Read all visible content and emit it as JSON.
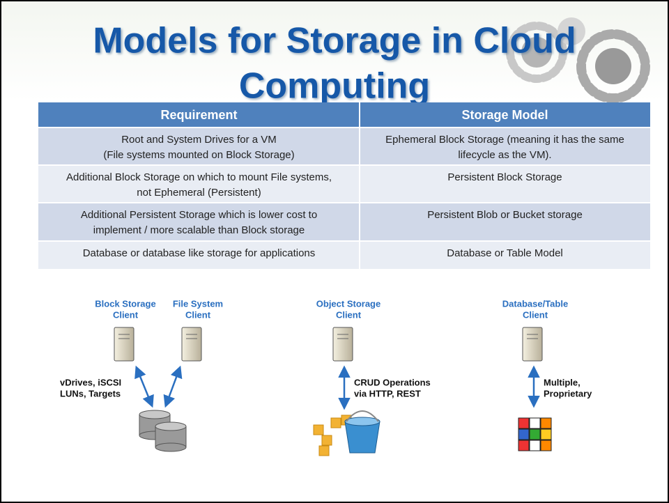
{
  "header": {
    "title": [
      "Models for Storage in Cloud",
      "Computing"
    ]
  },
  "table": {
    "columns": [
      "Requirement",
      "Storage Model"
    ],
    "rows": [
      [
        [
          "Root and System Drives for a VM",
          "(File systems mounted on Block Storage)"
        ],
        [
          "Ephemeral Block Storage (meaning it has the same",
          "lifecycle as the VM)."
        ]
      ],
      [
        [
          "Additional Block Storage on which to mount File systems,",
          "not Ephemeral (Persistent)"
        ],
        [
          "Persistent Block Storage"
        ]
      ],
      [
        [
          "Additional Persistent Storage which is lower cost to",
          "implement / more scalable than Block storage"
        ],
        [
          "Persistent Blob or Bucket storage"
        ]
      ],
      [
        [
          "Database or database like storage for applications"
        ],
        [
          "Database or Table Model"
        ]
      ]
    ]
  },
  "diagram": {
    "clients": [
      [
        "Block Storage",
        "Client"
      ],
      [
        "File System",
        "Client"
      ],
      [
        "Object Storage",
        "Client"
      ],
      [
        "Database/Table",
        "Client"
      ]
    ],
    "protocols": [
      [
        "vDrives, iSCSI",
        "LUNs, Targets"
      ],
      [
        "CRUD Operations",
        "via HTTP, REST"
      ],
      [
        "Multiple,",
        "Proprietary"
      ]
    ]
  }
}
